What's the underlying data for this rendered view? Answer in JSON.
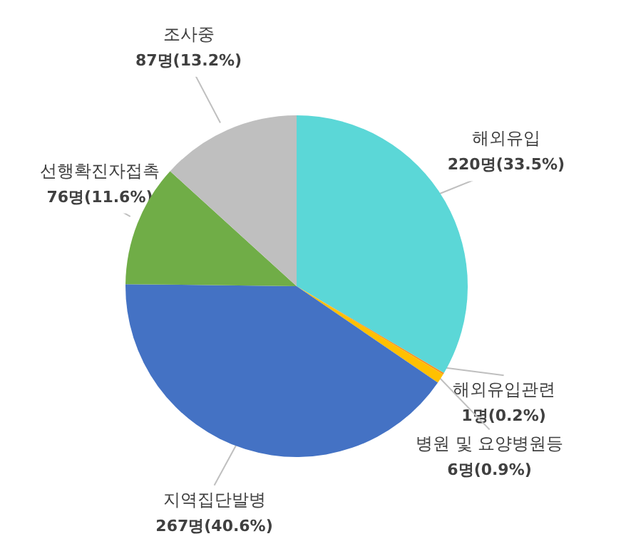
{
  "chart_data": {
    "type": "pie",
    "categories": [
      "해외유입",
      "해외유입관련",
      "병원 및 요양병원등",
      "지역집단발병",
      "선행확진자접촉",
      "조사중"
    ],
    "values": [
      220,
      1,
      6,
      267,
      76,
      87
    ],
    "colors": [
      "#5bd7d7",
      "#f5901e",
      "#ffc000",
      "#4472c4",
      "#70ad47",
      "#bfbfbf"
    ],
    "value_labels": [
      "220명(33.5%)",
      "1명(0.2%)",
      "6명(0.9%)",
      "267명(40.6%)",
      "76명(11.6%)",
      "87명(13.2%)"
    ]
  }
}
